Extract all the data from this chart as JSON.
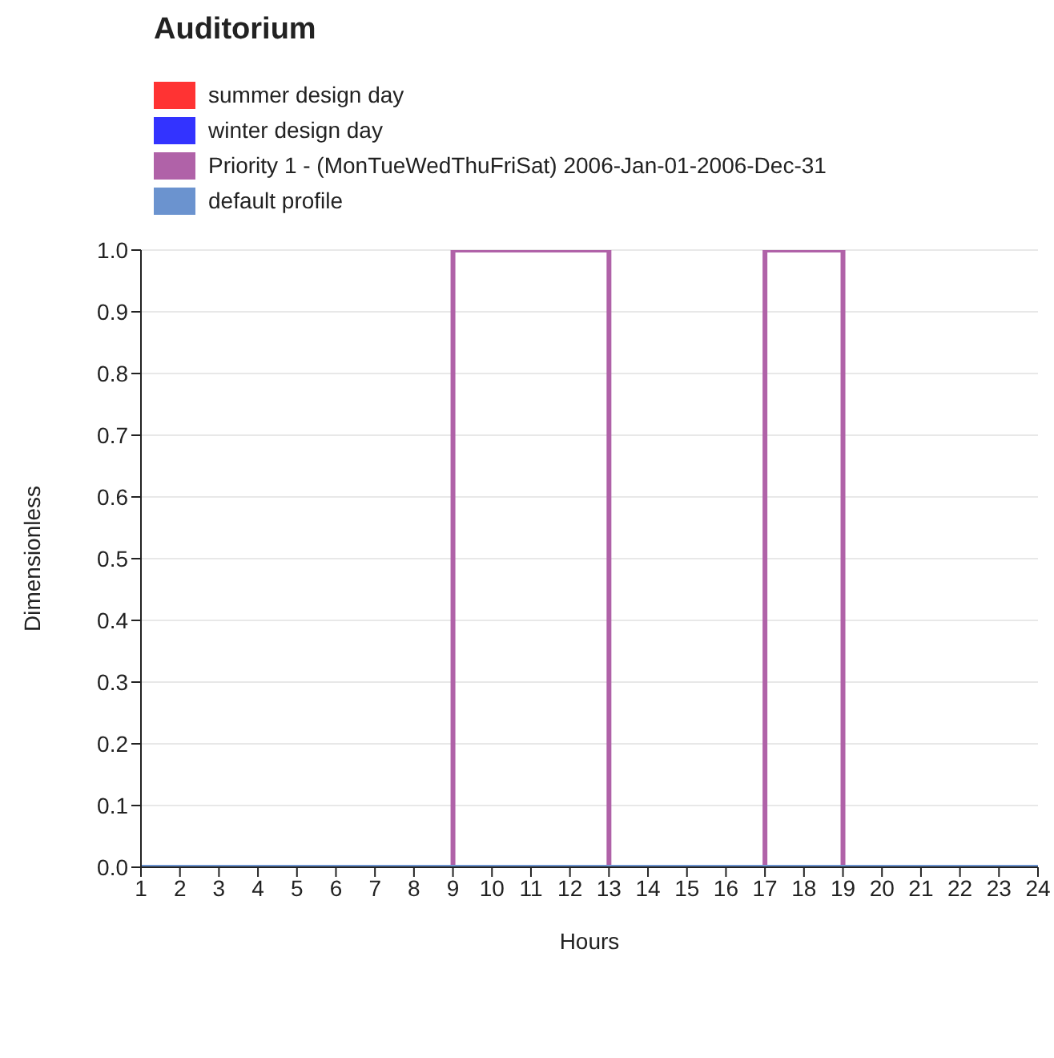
{
  "chart_data": {
    "type": "step",
    "title": "Auditorium",
    "xlabel": "Hours",
    "ylabel": "Dimensionless",
    "x": [
      1,
      2,
      3,
      4,
      5,
      6,
      7,
      8,
      9,
      10,
      11,
      12,
      13,
      14,
      15,
      16,
      17,
      18,
      19,
      20,
      21,
      22,
      23,
      24
    ],
    "series": [
      {
        "name": "summer design day",
        "color": "#ff3333",
        "values": [
          null,
          null,
          null,
          null,
          null,
          null,
          null,
          null,
          null,
          null,
          null,
          null,
          null,
          null,
          null,
          null,
          null,
          null,
          null,
          null,
          null,
          null,
          null,
          null
        ]
      },
      {
        "name": "winter design day",
        "color": "#3333ff",
        "values": [
          null,
          null,
          null,
          null,
          null,
          null,
          null,
          null,
          null,
          null,
          null,
          null,
          null,
          null,
          null,
          null,
          null,
          null,
          null,
          null,
          null,
          null,
          null,
          null
        ]
      },
      {
        "name": "Priority 1 - (MonTueWedThuFriSat) 2006-Jan-01-2006-Dec-31",
        "color": "#b062a8",
        "values": [
          0,
          0,
          0,
          0,
          0,
          0,
          0,
          0,
          1,
          1,
          1,
          1,
          0,
          0,
          0,
          0,
          1,
          1,
          0,
          0,
          0,
          0,
          0,
          0
        ]
      },
      {
        "name": "default profile",
        "color": "#6b93cf",
        "values": [
          0,
          0,
          0,
          0,
          0,
          0,
          0,
          0,
          0,
          0,
          0,
          0,
          0,
          0,
          0,
          0,
          0,
          0,
          0,
          0,
          0,
          0,
          0,
          0
        ]
      }
    ],
    "xlim": [
      1,
      24
    ],
    "xticks": [
      1,
      2,
      3,
      4,
      5,
      6,
      7,
      8,
      9,
      10,
      11,
      12,
      13,
      14,
      15,
      16,
      17,
      18,
      19,
      20,
      21,
      22,
      23,
      24
    ],
    "ylim": [
      0,
      1
    ],
    "yticks": [
      {
        "value": 0,
        "label": "0.0"
      },
      {
        "value": 0.1,
        "label": "0.1"
      },
      {
        "value": 0.2,
        "label": "0.2"
      },
      {
        "value": 0.3,
        "label": "0.3"
      },
      {
        "value": 0.4,
        "label": "0.4"
      },
      {
        "value": 0.5,
        "label": "0.5"
      },
      {
        "value": 0.6,
        "label": "0.6"
      },
      {
        "value": 0.7,
        "label": "0.7"
      },
      {
        "value": 0.8,
        "label": "0.8"
      },
      {
        "value": 0.9,
        "label": "0.9"
      },
      {
        "value": 1,
        "label": "1.0"
      }
    ],
    "grid": "y",
    "legend": "top left"
  }
}
